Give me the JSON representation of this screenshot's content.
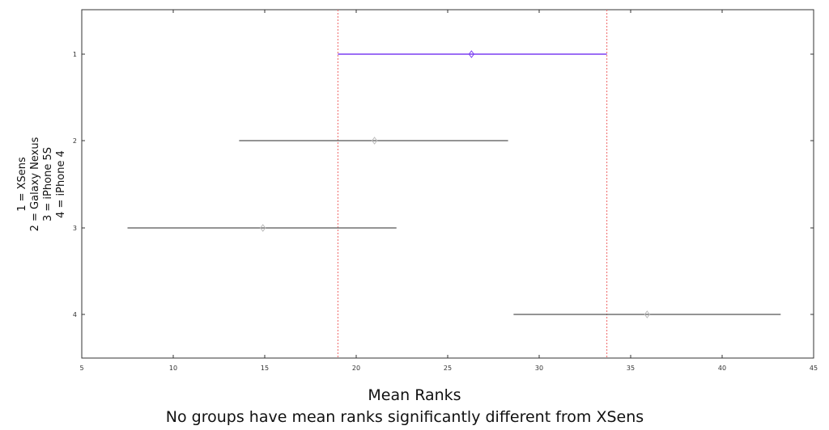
{
  "chart_data": {
    "type": "interval",
    "xlim": [
      5,
      45
    ],
    "x_ticks": [
      5,
      10,
      15,
      20,
      25,
      30,
      35,
      40,
      45
    ],
    "y_ticks": [
      1,
      2,
      3,
      4
    ],
    "xlabel": "Mean Ranks",
    "subtitle": "No groups have mean ranks significantly different from XSens",
    "ylabel_lines": [
      "1 = XSens",
      "2 = Galaxy Nexus",
      "3 = iPhone 5S",
      "4 = iPhone 4"
    ],
    "groups": [
      {
        "id": 1,
        "center": 26.3,
        "low": 19.0,
        "high": 33.7,
        "highlight": true
      },
      {
        "id": 2,
        "center": 21.0,
        "low": 13.6,
        "high": 28.3,
        "highlight": false
      },
      {
        "id": 3,
        "center": 14.9,
        "low": 7.5,
        "high": 22.2,
        "highlight": false
      },
      {
        "id": 4,
        "center": 35.9,
        "low": 28.6,
        "high": 43.2,
        "highlight": false
      }
    ],
    "reference_lines": [
      19.0,
      33.7
    ],
    "colors": {
      "highlight": "#7b3ff2",
      "normal": "#555555",
      "reference": "#ee6666",
      "axis": "#333333"
    }
  }
}
